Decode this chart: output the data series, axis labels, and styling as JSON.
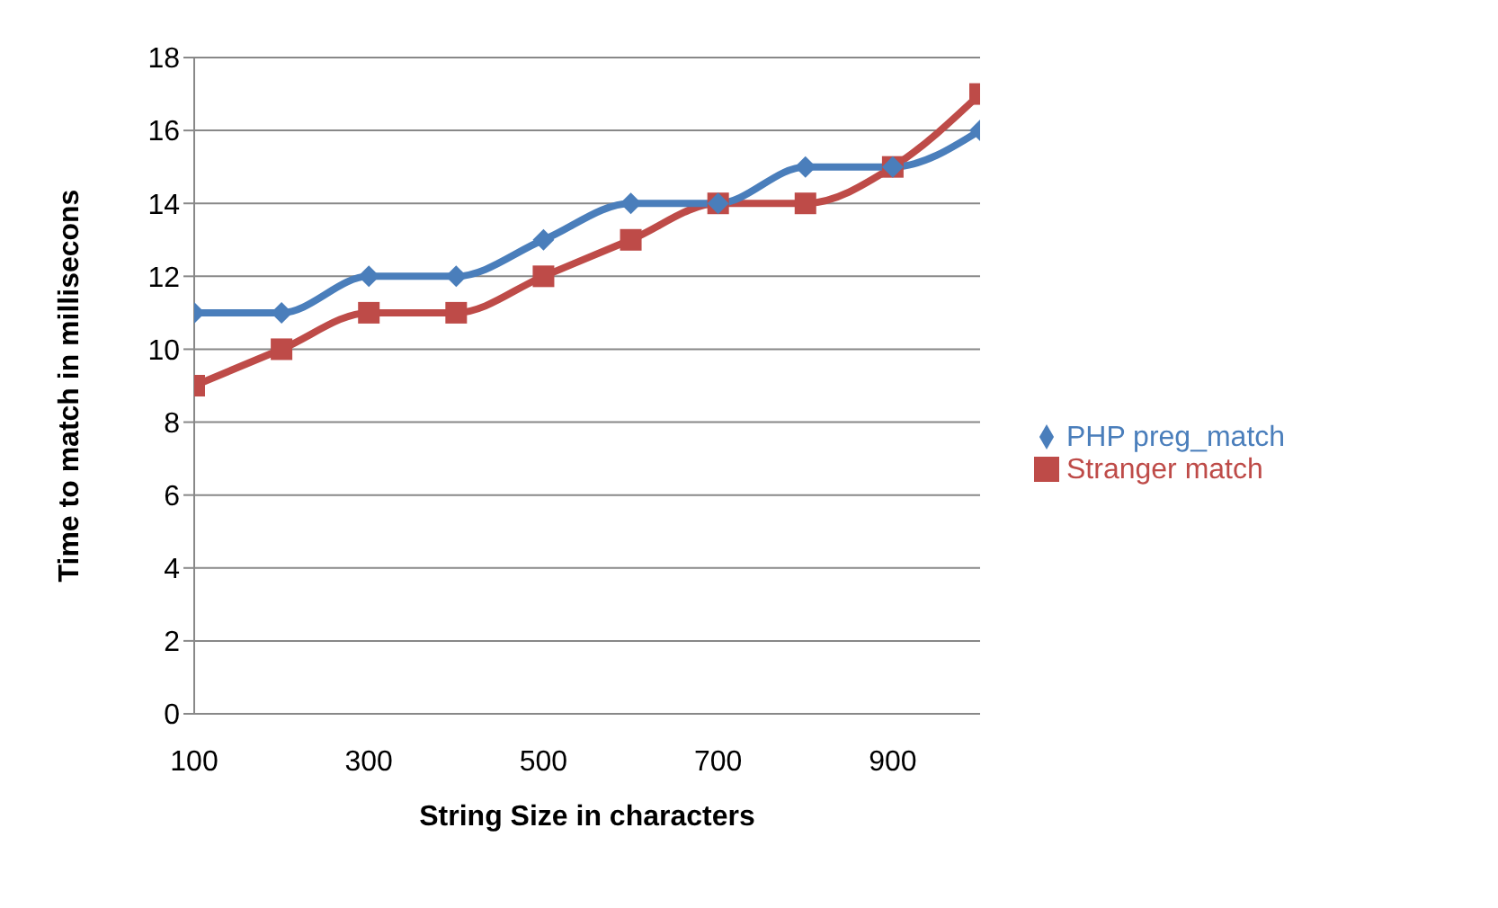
{
  "chart_data": {
    "type": "line",
    "xlabel": "String Size in characters",
    "ylabel": "Time to match in millisecons",
    "x": [
      100,
      200,
      300,
      400,
      500,
      600,
      700,
      800,
      900,
      1000
    ],
    "series": [
      {
        "name": "PHP preg_match",
        "color": "#4a7ebb",
        "marker": "diamond",
        "values": [
          11,
          11,
          12,
          12,
          13,
          14,
          14,
          15,
          15,
          16
        ]
      },
      {
        "name": "Stranger match",
        "color": "#be4b48",
        "marker": "square",
        "values": [
          9,
          10,
          11,
          11,
          12,
          13,
          14,
          14,
          15,
          17
        ]
      }
    ],
    "xlim": [
      100,
      1000
    ],
    "xticks": [
      100,
      300,
      500,
      700,
      900
    ],
    "ylim": [
      0,
      18
    ],
    "yticks": [
      0,
      2,
      4,
      6,
      8,
      10,
      12,
      14,
      16,
      18
    ],
    "grid": "y",
    "legend": "right",
    "line_style": "solid"
  }
}
